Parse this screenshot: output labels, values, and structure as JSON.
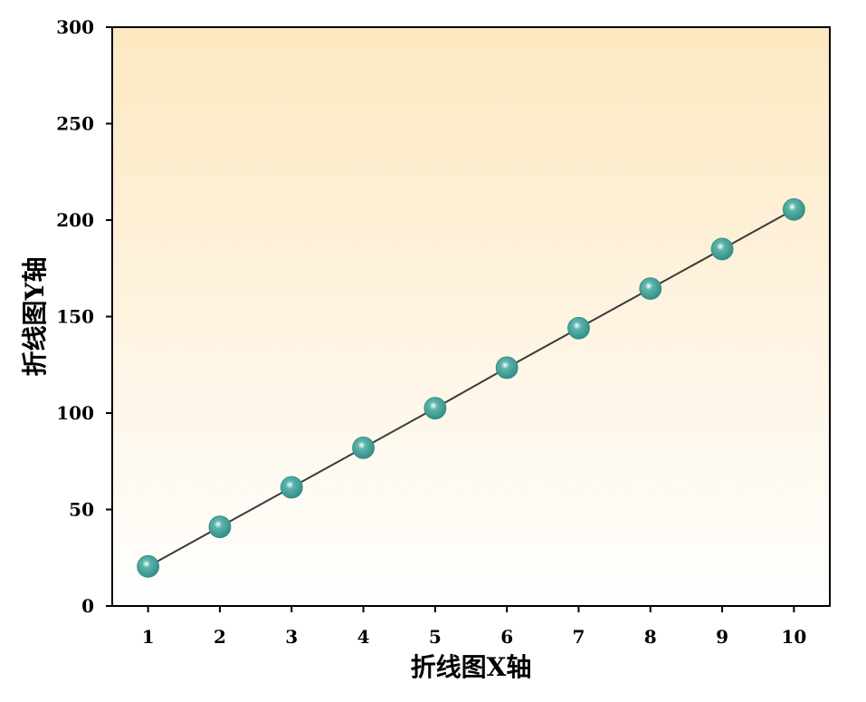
{
  "chart_data": {
    "type": "line",
    "title": "",
    "xlabel": "折线图X轴",
    "ylabel": "折线图Y轴",
    "x": [
      1,
      2,
      3,
      4,
      5,
      6,
      7,
      8,
      9,
      10
    ],
    "series": [
      {
        "values": [
          20.5,
          41,
          61.5,
          82,
          102.5,
          123.5,
          144,
          164.5,
          185,
          205.5
        ]
      }
    ],
    "xlim": [
      0.5,
      10.5
    ],
    "ylim": [
      0,
      300
    ],
    "xticks": [
      1,
      2,
      3,
      4,
      5,
      6,
      7,
      8,
      9,
      10
    ],
    "yticks": [
      0,
      50,
      100,
      150,
      200,
      250,
      300
    ],
    "grid": false,
    "legend": "none",
    "colors": {
      "background_top": "#fde8c1",
      "background_bottom": "#ffffff",
      "line": "#3a3a3a",
      "marker": "#5bb5ac",
      "marker_dark": "#2f8c84",
      "marker_highlight": "#ffffff"
    }
  }
}
